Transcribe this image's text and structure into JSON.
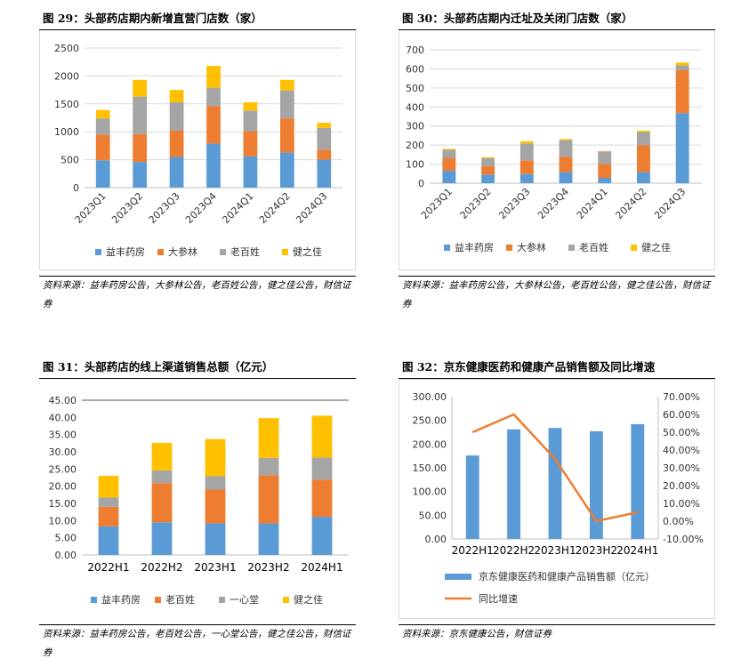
{
  "colors": {
    "blue": "#5b9bd5",
    "orange": "#ed7d31",
    "gray": "#a5a5a5",
    "yellow": "#ffc000",
    "line": "#ed7d31"
  },
  "fig29": {
    "title": "图 29：头部药店期内新增直营门店数（家）",
    "source": "资料来源：益丰药房公告，大参林公告，老百姓公告，健之佳公告，财信证券"
  },
  "fig30": {
    "title": "图 30：头部药店期内迁址及关闭门店数（家）",
    "source": "资料来源：益丰药房公告，大参林公告，老百姓公告，健之佳公告，财信证券"
  },
  "fig31": {
    "title": "图 31：头部药店的线上渠道销售总额（亿元）",
    "source": "资料来源：益丰药房公告，老百姓公告，一心堂公告，健之佳公告，财信证券"
  },
  "fig32": {
    "title": "图 32：京东健康医药和健康产品销售额及同比增速",
    "source": "资料来源：京东健康公告，财信证券"
  },
  "chart_data": [
    {
      "type": "bar",
      "stacked": true,
      "categories": [
        "2023Q1",
        "2023Q2",
        "2023Q3",
        "2023Q4",
        "2024Q1",
        "2024Q2",
        "2024Q3"
      ],
      "series": [
        {
          "name": "益丰药房",
          "values": [
            490,
            460,
            550,
            790,
            560,
            630,
            500
          ]
        },
        {
          "name": "大参林",
          "values": [
            460,
            500,
            470,
            670,
            450,
            610,
            180
          ]
        },
        {
          "name": "老百姓",
          "values": [
            290,
            670,
            510,
            330,
            370,
            500,
            390
          ]
        },
        {
          "name": "健之佳",
          "values": [
            150,
            300,
            220,
            390,
            150,
            190,
            90
          ]
        }
      ],
      "yticks": [
        "0",
        "500",
        "1000",
        "1500",
        "2000",
        "2500"
      ],
      "ylim": [
        0,
        2500
      ],
      "grid": true,
      "legend": "bottom"
    },
    {
      "type": "bar",
      "stacked": true,
      "categories": [
        "2023Q1",
        "2023Q2",
        "2023Q3",
        "2023Q4",
        "2024Q1",
        "2024Q2",
        "2024Q3"
      ],
      "series": [
        {
          "name": "益丰药房",
          "values": [
            65,
            45,
            48,
            58,
            28,
            58,
            368
          ]
        },
        {
          "name": "大参林",
          "values": [
            68,
            45,
            72,
            80,
            72,
            142,
            225
          ]
        },
        {
          "name": "老百姓",
          "values": [
            42,
            42,
            88,
            87,
            67,
            68,
            25
          ]
        },
        {
          "name": "健之佳",
          "values": [
            5,
            5,
            12,
            7,
            2,
            8,
            15
          ]
        }
      ],
      "yticks": [
        "0",
        "100",
        "200",
        "300",
        "400",
        "500",
        "600",
        "700"
      ],
      "ylim": [
        0,
        700
      ],
      "grid": true,
      "legend": "bottom"
    },
    {
      "type": "bar",
      "stacked": true,
      "categories": [
        "2022H1",
        "2022H2",
        "2023H1",
        "2023H2",
        "2024H1"
      ],
      "series": [
        {
          "name": "益丰药房",
          "values": [
            8.3,
            9.5,
            9.2,
            9.2,
            11.1
          ]
        },
        {
          "name": "老百姓",
          "values": [
            5.7,
            11.4,
            9.8,
            14.0,
            10.8
          ]
        },
        {
          "name": "一心堂",
          "values": [
            2.7,
            3.7,
            3.9,
            5.0,
            6.4
          ]
        },
        {
          "name": "健之佳",
          "values": [
            6.3,
            8.0,
            10.8,
            11.6,
            12.2
          ]
        }
      ],
      "yticks": [
        "0.00",
        "5.00",
        "10.00",
        "15.00",
        "20.00",
        "25.00",
        "30.00",
        "35.00",
        "40.00",
        "45.00"
      ],
      "ylim": [
        0,
        45
      ],
      "grid": false,
      "legend": "bottom"
    },
    {
      "type": "bar",
      "categories": [
        "2022H1",
        "2022H2",
        "2023H1",
        "2023H2",
        "2024H1"
      ],
      "series": [
        {
          "name": "京东健康医药和健康产品销售额（亿元）",
          "type": "bar",
          "axis": "left",
          "values": [
            176,
            231,
            234,
            227,
            242
          ]
        },
        {
          "name": "同比增速",
          "type": "line",
          "axis": "right",
          "values": [
            50.0,
            60.0,
            35.0,
            0.0,
            5.0
          ]
        }
      ],
      "yticks_left": [
        "0.00",
        "50.00",
        "100.00",
        "150.00",
        "200.00",
        "250.00",
        "300.00"
      ],
      "ylim_left": [
        0,
        300
      ],
      "yticks_right": [
        "-10.00%",
        "0.00%",
        "10.00%",
        "20.00%",
        "30.00%",
        "40.00%",
        "50.00%",
        "60.00%",
        "70.00%"
      ],
      "ylim_right": [
        -10,
        70
      ],
      "grid": false,
      "legend": "bottom"
    }
  ]
}
